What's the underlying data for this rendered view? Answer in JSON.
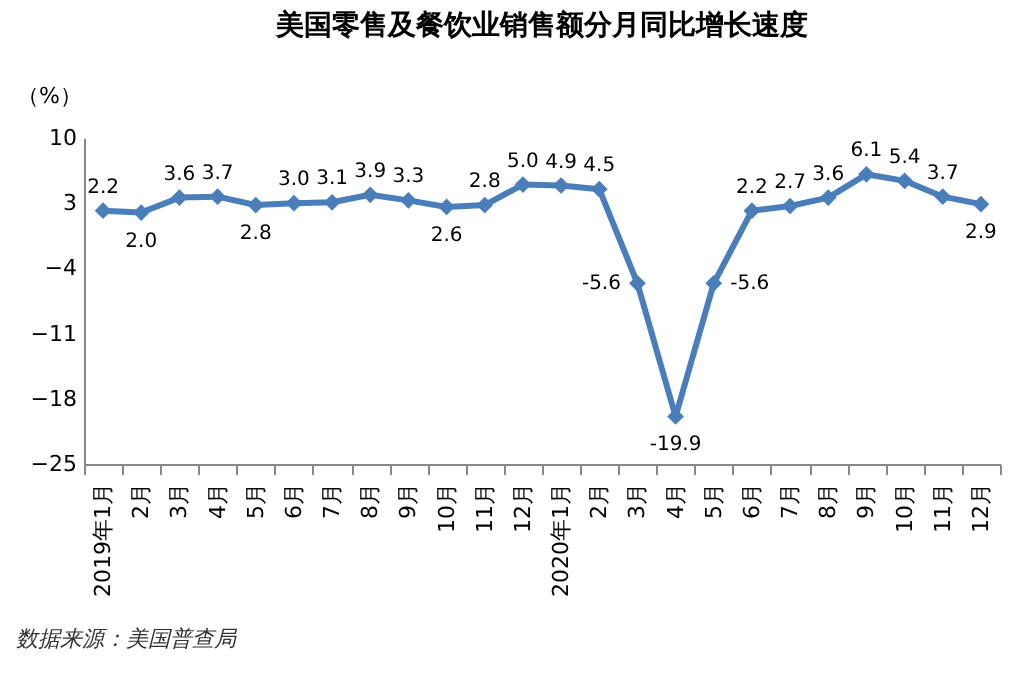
{
  "chart_data": {
    "type": "line",
    "title": "美国零售及餐饮业销售额分月同比增长速度",
    "ylabel": "（%）",
    "annotations": [
      "数据来源：美国普查局"
    ],
    "categories": [
      "2019年1月",
      "2月",
      "3月",
      "4月",
      "5月",
      "6月",
      "7月",
      "8月",
      "9月",
      "10月",
      "11月",
      "12月",
      "2020年1月",
      "2月",
      "3月",
      "4月",
      "5月",
      "6月",
      "7月",
      "8月",
      "9月",
      "10月",
      "11月",
      "12月"
    ],
    "series": [
      {
        "color": "#4a7ebb",
        "values": [
          2.2,
          2.0,
          3.6,
          3.7,
          2.8,
          3.0,
          3.1,
          3.9,
          3.3,
          2.6,
          2.8,
          5.0,
          4.9,
          4.5,
          -5.6,
          -19.9,
          -5.6,
          2.2,
          2.7,
          3.6,
          6.1,
          5.4,
          3.7,
          2.9
        ],
        "value_labels": [
          "2.2",
          "2.0",
          "3.6",
          "3.7",
          "2.8",
          "3.0",
          "3.1",
          "3.9",
          "3.3",
          "2.6",
          "2.8",
          "5.0",
          "4.9",
          "4.5",
          "-5.6",
          "-19.9",
          "-5.6",
          "2.2",
          "2.7",
          "3.6",
          "6.1",
          "5.4",
          "3.7",
          "2.9"
        ]
      }
    ],
    "ylim": [
      -25,
      10
    ],
    "yticks": [
      10,
      3,
      -4,
      -11,
      -18,
      -25
    ],
    "grid": false,
    "marker": "diamond",
    "line_style": "solid"
  }
}
